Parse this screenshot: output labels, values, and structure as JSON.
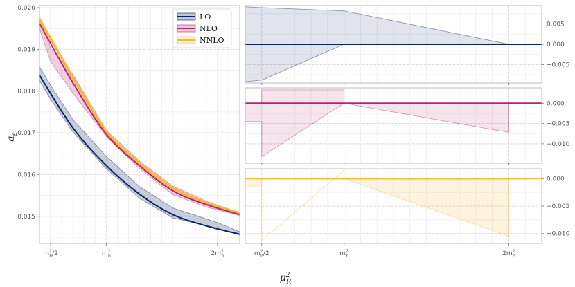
{
  "chart_data": {
    "type": "line",
    "xlabel": "μ_R²",
    "ylabel": "a_s",
    "x_ticks": [
      "m_b²/2",
      "m_b²",
      "2m_b²"
    ],
    "colors": {
      "LO": "#0a2263",
      "NLO": "#b5256b",
      "NNLO": "#f8b732"
    },
    "main": {
      "xlim": [
        0.4,
        2.2
      ],
      "ylim": [
        0.01435,
        0.02005
      ],
      "yticks": [
        "0.015",
        "0.016",
        "0.017",
        "0.018",
        "0.019",
        "0.020"
      ],
      "legend_position": "upper-center",
      "series": [
        {
          "name": "LO",
          "x": [
            0.4,
            0.7,
            1.0,
            1.3,
            1.6,
            1.9,
            2.2
          ],
          "y": [
            0.01838,
            0.01712,
            0.01622,
            0.01553,
            0.01504,
            0.01477,
            0.01457
          ],
          "band": {
            "x": [
              0.4,
              0.5,
              0.7,
              1.0,
              1.3,
              1.6,
              2.0,
              2.2
            ],
            "upper": [
              0.01858,
              0.01814,
              0.01732,
              0.01644,
              0.01571,
              0.0152,
              0.01485,
              0.01463
            ],
            "lower": [
              0.01825,
              0.0178,
              0.01702,
              0.01614,
              0.01543,
              0.01496,
              0.01472,
              0.01455
            ]
          }
        },
        {
          "name": "NLO",
          "x": [
            0.4,
            0.7,
            1.0,
            1.3,
            1.6,
            1.9,
            2.2
          ],
          "y": [
            0.01962,
            0.0182,
            0.01697,
            0.01621,
            0.01561,
            0.01528,
            0.01504
          ],
          "band": {
            "x": [
              0.4,
              0.5,
              0.7,
              1.0,
              1.3,
              1.6,
              1.9,
              2.2
            ],
            "upper": [
              0.01973,
              0.01902,
              0.0184,
              0.01706,
              0.01632,
              0.01572,
              0.01536,
              0.01508
            ],
            "lower": [
              0.0195,
              0.01871,
              0.01795,
              0.01691,
              0.01614,
              0.01552,
              0.01522,
              0.01502
            ]
          }
        },
        {
          "name": "NNLO",
          "x": [
            0.4,
            0.7,
            1.0,
            1.3,
            1.6,
            1.9,
            2.2
          ],
          "y": [
            0.01972,
            0.01833,
            0.01703,
            0.01626,
            0.01567,
            0.01532,
            0.01508
          ],
          "band": {
            "x": [
              0.4,
              0.7,
              1.0,
              1.3,
              1.6,
              1.9,
              2.2
            ],
            "upper": [
              0.01978,
              0.01838,
              0.01706,
              0.01629,
              0.0157,
              0.01535,
              0.0151
            ],
            "lower": [
              0.01966,
              0.01828,
              0.017,
              0.01623,
              0.01564,
              0.01529,
              0.01506
            ]
          }
        }
      ]
    },
    "panels": [
      {
        "name": "LO",
        "ylim": [
          -0.0095,
          0.0095
        ],
        "yticks": [
          0.005,
          0.0,
          -0.005
        ],
        "ytick_labels": [
          "0.005",
          "0.000",
          "−0.005"
        ],
        "band_x": [
          0.4,
          0.5,
          1.0,
          2.0
        ],
        "band_upper": [
          0.0092,
          0.009,
          0.0082,
          0.0
        ],
        "band_lower": [
          -0.0092,
          -0.0088,
          0.0,
          0.0
        ]
      },
      {
        "name": "NLO",
        "ylim": [
          -0.0148,
          0.0038
        ],
        "yticks": [
          0.0,
          -0.005,
          -0.01
        ],
        "ytick_labels": [
          "0.000",
          "−0.005",
          "−0.010"
        ],
        "band_x": [
          0.4,
          0.5,
          0.5,
          1.0,
          1.0,
          2.0,
          2.0
        ],
        "band_upper": [
          0.0,
          0.0,
          0.0033,
          0.0033,
          0.0,
          0.0,
          0.0
        ],
        "band_lower": [
          -0.0045,
          -0.0045,
          -0.0132,
          0.0,
          0.0,
          -0.0072,
          0.0
        ]
      },
      {
        "name": "NNLO",
        "ylim": [
          -0.0118,
          0.0018
        ],
        "yticks": [
          0.0,
          -0.005,
          -0.01
        ],
        "ytick_labels": [
          "0.000",
          "−0.005",
          "−0.010"
        ],
        "band_x": [
          0.4,
          0.5,
          0.5,
          1.0,
          1.0,
          2.0,
          2.0
        ],
        "band_upper": [
          0.0,
          0.0,
          -0.0112,
          0.0015,
          0.0,
          0.0,
          0.0
        ],
        "band_lower": [
          -0.0015,
          -0.0015,
          -0.0112,
          0.0015,
          0.0,
          -0.0105,
          0.0
        ]
      }
    ]
  }
}
